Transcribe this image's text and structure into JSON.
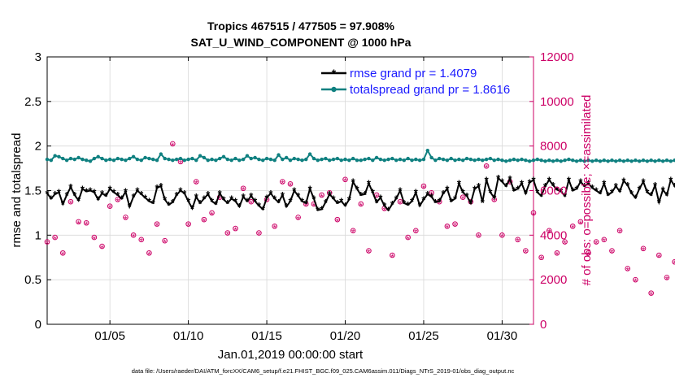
{
  "chart_data": {
    "type": "line",
    "title": "Tropics 467515 / 477505 = 97.908%",
    "subtitle": "SAT_U_WIND_COMPONENT @ 1000 hPa",
    "xlabel": "Jan.01,2019 00:00:00 start",
    "ylabel": "rmse and totalspread",
    "ylabel_right": "# of obs: o=possible; ×=assimilated",
    "footer": "data file: /Users/raeder/DAI/ATM_forcXX/CAM6_setup/f.e21.FHIST_BGC.f09_025.CAM6assim.011/Diags_NTrS_2019-01/obs_diag_output.nc",
    "xlim": [
      1,
      32
    ],
    "ylim": [
      0,
      3
    ],
    "ylim_right": [
      0,
      12000
    ],
    "x_ticks": [
      5,
      10,
      15,
      20,
      25,
      30
    ],
    "x_tick_labels": [
      "01/05",
      "01/10",
      "01/15",
      "01/20",
      "01/25",
      "01/30"
    ],
    "y_ticks": [
      0,
      0.5,
      1,
      1.5,
      2,
      2.5,
      3
    ],
    "y_tick_labels": [
      "0",
      "0.5",
      "1",
      "1.5",
      "2",
      "2.5",
      "3"
    ],
    "y2_ticks": [
      0,
      2000,
      4000,
      6000,
      8000,
      10000,
      12000
    ],
    "y2_tick_labels": [
      "0",
      "2000",
      "4000",
      "6000",
      "8000",
      "10000",
      "12000"
    ],
    "grid": true,
    "legend_position": "top-right",
    "colors": {
      "rmse": "#000000",
      "spread": "#0f8080",
      "obs": "#cc0066",
      "axis_right": "#cc0066",
      "legend_text": "#1a1aff"
    },
    "series": [
      {
        "name": "rmse grand pr = 1.4079",
        "key": "rmse",
        "x0": 1,
        "dx": 0.25,
        "values": [
          1.47,
          1.41,
          1.46,
          1.48,
          1.35,
          1.45,
          1.54,
          1.45,
          1.39,
          1.52,
          1.49,
          1.5,
          1.48,
          1.4,
          1.47,
          1.44,
          1.52,
          1.48,
          1.45,
          1.41,
          1.49,
          1.32,
          1.43,
          1.5,
          1.46,
          1.42,
          1.38,
          1.36,
          1.53,
          1.55,
          1.4,
          1.34,
          1.37,
          1.45,
          1.5,
          1.47,
          1.38,
          1.3,
          1.43,
          1.36,
          1.41,
          1.46,
          1.38,
          1.35,
          1.47,
          1.4,
          1.36,
          1.41,
          1.38,
          1.32,
          1.43,
          1.38,
          1.44,
          1.38,
          1.33,
          1.29,
          1.42,
          1.47,
          1.41,
          1.37,
          1.45,
          1.32,
          1.38,
          1.5,
          1.44,
          1.38,
          1.36,
          1.52,
          1.41,
          1.28,
          1.29,
          1.37,
          1.46,
          1.41,
          1.36,
          1.38,
          1.33,
          1.4,
          1.6,
          1.52,
          1.45,
          1.46,
          1.58,
          1.48,
          1.37,
          1.42,
          1.33,
          1.28,
          1.35,
          1.41,
          1.5,
          1.36,
          1.34,
          1.38,
          1.48,
          1.33,
          1.4,
          1.46,
          1.43,
          1.37,
          1.38,
          1.47,
          1.52,
          1.38,
          1.41,
          1.58,
          1.48,
          1.44,
          1.36,
          1.52,
          1.55,
          1.37,
          1.62,
          1.48,
          1.42,
          1.64,
          1.6,
          1.55,
          1.63,
          1.5,
          1.52,
          1.58,
          1.47,
          1.59,
          1.62,
          1.48,
          1.44,
          1.55,
          1.62,
          1.56,
          1.51,
          1.49,
          1.44,
          1.62,
          1.5,
          1.52,
          1.6,
          1.55,
          1.58,
          1.53,
          1.5,
          1.47,
          1.58,
          1.45,
          1.48,
          1.55,
          1.49,
          1.61,
          1.56,
          1.47,
          1.42,
          1.52,
          1.6,
          1.48,
          1.45,
          1.56,
          1.37,
          1.51,
          1.45,
          1.62,
          1.55,
          1.48,
          1.6,
          1.45,
          1.5,
          1.59,
          1.4,
          1.44,
          1.52,
          1.65,
          1.55,
          1.48,
          1.38,
          1.58,
          1.52,
          1.46,
          1.41,
          1.52,
          1.6,
          1.47,
          1.44,
          1.55,
          1.43,
          1.49,
          1.59,
          1.4,
          1.44,
          1.5,
          1.42,
          1.41,
          1.44,
          1.38,
          1.43,
          1.36,
          1.38,
          1.32,
          1.29,
          1.4,
          1.31,
          1.3,
          1.36,
          1.41,
          1.38,
          1.34,
          1.21,
          1.27,
          1.3,
          1.41,
          1.45,
          1.4,
          1.32,
          1.43,
          1.2,
          1.47,
          1.48,
          1.48
        ]
      },
      {
        "name": "totalspread grand pr = 1.8616",
        "key": "spread",
        "x0": 1,
        "dx": 0.25,
        "values": [
          1.85,
          1.84,
          1.89,
          1.88,
          1.86,
          1.84,
          1.86,
          1.85,
          1.87,
          1.85,
          1.84,
          1.83,
          1.86,
          1.88,
          1.86,
          1.84,
          1.85,
          1.84,
          1.86,
          1.85,
          1.84,
          1.86,
          1.88,
          1.85,
          1.84,
          1.87,
          1.86,
          1.85,
          1.84,
          1.91,
          1.86,
          1.85,
          1.84,
          1.85,
          1.86,
          1.84,
          1.85,
          1.86,
          1.84,
          1.89,
          1.87,
          1.84,
          1.85,
          1.84,
          1.86,
          1.88,
          1.85,
          1.84,
          1.86,
          1.84,
          1.85,
          1.89,
          1.86,
          1.87,
          1.85,
          1.84,
          1.86,
          1.85,
          1.84,
          1.9,
          1.85,
          1.87,
          1.84,
          1.86,
          1.85,
          1.84,
          1.85,
          1.91,
          1.86,
          1.84,
          1.85,
          1.86,
          1.84,
          1.85,
          1.86,
          1.84,
          1.85,
          1.84,
          1.86,
          1.84,
          1.84,
          1.85,
          1.86,
          1.84,
          1.87,
          1.85,
          1.84,
          1.85,
          1.86,
          1.84,
          1.85,
          1.84,
          1.86,
          1.84,
          1.85,
          1.84,
          1.85,
          1.95,
          1.87,
          1.84,
          1.86,
          1.85,
          1.84,
          1.86,
          1.84,
          1.85,
          1.84,
          1.86,
          1.85,
          1.84,
          1.85,
          1.84,
          1.85,
          1.86,
          1.84,
          1.85,
          1.84,
          1.83,
          1.84,
          1.85,
          1.84,
          1.85,
          1.84,
          1.83,
          1.84,
          1.85,
          1.84,
          1.83,
          1.84,
          1.83,
          1.84,
          1.83,
          1.84,
          1.85,
          1.84,
          1.83,
          1.84,
          1.83,
          1.84,
          1.83,
          1.84,
          1.83,
          1.84,
          1.83,
          1.84,
          1.83,
          1.84,
          1.83,
          1.84,
          1.83,
          1.84,
          1.83,
          1.84,
          1.83,
          1.84,
          1.83,
          1.84,
          1.83,
          1.84,
          1.83,
          1.84,
          1.83,
          1.84,
          1.83,
          1.84,
          1.83,
          1.84,
          1.83,
          1.84,
          1.83,
          1.84,
          1.83,
          1.84,
          1.83,
          1.84,
          1.83,
          1.84,
          1.83,
          1.84,
          1.83,
          1.84,
          1.83,
          1.84,
          1.83,
          1.84,
          1.83,
          1.84,
          1.83,
          1.84,
          1.83,
          1.84,
          1.83,
          1.84,
          1.83,
          1.84,
          1.83,
          1.84,
          1.83,
          1.84,
          1.83,
          1.84,
          1.83,
          1.84,
          1.83,
          1.84,
          1.83,
          1.84,
          1.83,
          1.84,
          1.83,
          1.84,
          1.83,
          1.84,
          1.83
        ]
      },
      {
        "name": "obs possible",
        "key": "obs_possible",
        "x0": 1,
        "dx": 0.5,
        "values": [
          3700,
          3900,
          3200,
          5500,
          4600,
          4550,
          3900,
          3500,
          5300,
          5600,
          4800,
          4000,
          3800,
          3200,
          4500,
          3750,
          8100,
          7300,
          4500,
          6400,
          4700,
          5000,
          5700,
          4100,
          4300,
          6100,
          5500,
          4100,
          5600,
          4400,
          6400,
          6300,
          4800,
          5400,
          5400,
          5800,
          5900,
          4700,
          6500,
          4200,
          5400,
          3300,
          5800,
          5200,
          3100,
          5500,
          3900,
          4200,
          6200,
          5900,
          5500,
          4400,
          4500,
          5700,
          5500,
          4000,
          7100,
          5600,
          4000,
          6400,
          3800,
          3300,
          5000,
          3000,
          4200,
          3200,
          3700,
          4400,
          4600,
          3200,
          3700,
          3800,
          3300,
          4200,
          2500,
          2000,
          3400,
          1400,
          3100,
          2100,
          2800,
          1700,
          2600,
          2000,
          2800,
          1700,
          2700,
          2500,
          1300,
          3400,
          2300,
          1200,
          2700,
          2000,
          1800,
          2200,
          4800,
          2000,
          4100,
          1600,
          1300,
          4900,
          4400,
          5100,
          4800,
          2200,
          2800,
          5000,
          4400,
          2200
        ]
      },
      {
        "name": "obs assimilated",
        "key": "obs_assim",
        "x0": 1,
        "dx": 0.5,
        "values": [
          3650,
          3850,
          3150,
          5450,
          4550,
          4500,
          3850,
          3450,
          5250,
          5550,
          4750,
          3950,
          3750,
          3150,
          4450,
          3700,
          8050,
          7250,
          4450,
          6350,
          4650,
          4950,
          5650,
          4050,
          4250,
          6050,
          5450,
          4050,
          5550,
          4350,
          6350,
          6250,
          4750,
          5350,
          5350,
          5750,
          5850,
          4650,
          6450,
          4150,
          5350,
          3250,
          5750,
          5150,
          3050,
          5450,
          3850,
          4150,
          6150,
          5850,
          5450,
          4350,
          4450,
          5650,
          5450,
          3950,
          7050,
          5550,
          3950,
          6350,
          3750,
          3250,
          4950,
          2950,
          4150,
          3150,
          3650,
          4350,
          4550,
          3150,
          3650,
          3750,
          3250,
          4150,
          2450,
          1950,
          3350,
          1350,
          3050,
          2050,
          2750,
          1650,
          2550,
          1950,
          2750,
          1650,
          2650,
          2450,
          1250,
          3350,
          2250,
          1150,
          2650,
          1950,
          1750,
          2150,
          4750,
          1950,
          4050,
          1550,
          1250,
          4850,
          4350,
          5050,
          4750,
          2150,
          2750,
          4950,
          4350,
          2150
        ]
      }
    ]
  }
}
